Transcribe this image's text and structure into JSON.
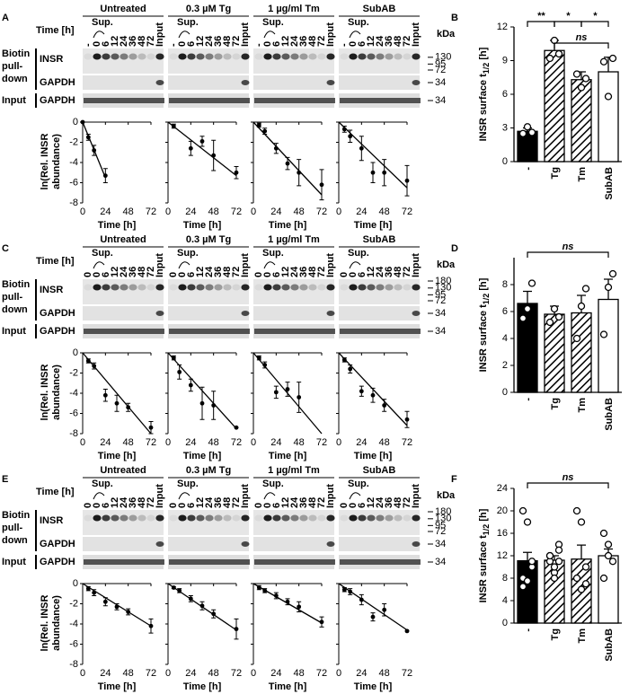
{
  "figure": {
    "rows": [
      {
        "letter": "A",
        "conditions": [
          "Untreated",
          "0.3 µM Tg",
          "1 µg/ml Tm",
          "SubAB"
        ],
        "time_label": "Time [h]",
        "sup_label": "Sup.",
        "lanes": [
          "-",
          "0",
          "6",
          "12",
          "24",
          "36",
          "48",
          "72",
          "Input"
        ],
        "kda_label": "kDa",
        "kda": [
          130,
          95,
          72,
          34,
          34
        ],
        "blot_labels": {
          "biotin": [
            "Biotin",
            "pull-",
            "down"
          ],
          "insr": "INSR",
          "gapdh": "GAPDH",
          "input": "Input",
          "input_gapdh": "GAPDH"
        },
        "decay": {
          "type": "line",
          "ylabel": [
            "ln(Rel. INSR",
            "abundance)"
          ],
          "xlabel": "Time [h]",
          "xlim": [
            0,
            72
          ],
          "ylim": [
            -8,
            0
          ],
          "xticks": [
            0,
            24,
            48,
            72
          ],
          "yticks": [
            0,
            -2,
            -4,
            -6,
            -8
          ],
          "plots": [
            {
              "x": [
                0,
                6,
                12,
                24
              ],
              "values": [
                0,
                -1.5,
                -2.8,
                -5.3
              ],
              "errors": [
                0,
                0.3,
                0.5,
                0.7
              ],
              "fit": {
                "x": [
                  0,
                  24
                ],
                "y": [
                  0,
                  -5.5
                ]
              }
            },
            {
              "x": [
                6,
                24,
                36,
                48,
                72
              ],
              "values": [
                -0.4,
                -2.6,
                -1.9,
                -3.3,
                -5
              ],
              "errors": [
                0.2,
                0.7,
                0.5,
                1.5,
                0.6
              ],
              "fit": {
                "x": [
                  0,
                  72
                ],
                "y": [
                  0,
                  -5.3
                ]
              }
            },
            {
              "x": [
                6,
                12,
                24,
                36,
                48,
                72
              ],
              "values": [
                -0.3,
                -0.9,
                -2.6,
                -4.1,
                -5,
                -6.2
              ],
              "errors": [
                0.2,
                0.3,
                0.5,
                0.6,
                1.3,
                1.5
              ],
              "fit": {
                "x": [
                  0,
                  72
                ],
                "y": [
                  0,
                  -7.2
                ]
              }
            },
            {
              "x": [
                6,
                12,
                24,
                36,
                48,
                72
              ],
              "values": [
                -0.7,
                -1.4,
                -2.6,
                -5,
                -5,
                -5.8
              ],
              "errors": [
                0.3,
                0.6,
                1.2,
                1,
                1.3,
                1.5
              ],
              "fit": {
                "x": [
                  0,
                  72
                ],
                "y": [
                  0,
                  -6.5
                ]
              }
            }
          ]
        },
        "summary": {
          "type": "bar",
          "letter": "B",
          "ylabel": "INSR surface t",
          "ylabel_sub": "1/2",
          "ylabel_unit": " [h]",
          "categories": [
            "-",
            "Tg",
            "Tm",
            "SubAB"
          ],
          "styles": [
            "solid",
            "hatched",
            "hatched",
            "open"
          ],
          "values": [
            2.7,
            9.9,
            7.3,
            8.0
          ],
          "errors": [
            0.3,
            0.9,
            0.7,
            1.3
          ],
          "points": [
            [
              2.5,
              3.1,
              2.6
            ],
            [
              9.2,
              10.8,
              9.6
            ],
            [
              7.8,
              6.6,
              7.4
            ],
            [
              8.9,
              5.8,
              9.2
            ]
          ],
          "ylim": [
            0,
            12
          ],
          "yticks": [
            0,
            3,
            6,
            9,
            12
          ],
          "significance": [
            {
              "label": "**",
              "between": [
                "-",
                "Tg"
              ]
            },
            {
              "label": "*",
              "between": [
                "Tg",
                "Tm"
              ]
            },
            {
              "label": "*",
              "between": [
                "Tm",
                "SubAB"
              ]
            },
            {
              "label": "ns",
              "between": [
                "Tg",
                "SubAB"
              ]
            }
          ]
        }
      },
      {
        "letter": "C",
        "conditions": [
          "Untreated",
          "0.3 µM Tg",
          "1 µg/ml Tm",
          "SubAB"
        ],
        "time_label": "Time [h]",
        "sup_label": "Sup.",
        "lanes": [
          "0",
          "0",
          "6",
          "12",
          "24",
          "36",
          "48",
          "72",
          "Input"
        ],
        "kda_label": "kDa",
        "kda": [
          180,
          130,
          95,
          72,
          34,
          34
        ],
        "blot_labels": {
          "biotin": [
            "Biotin",
            "pull-",
            "down"
          ],
          "insr": "INSR",
          "gapdh": "GAPDH",
          "input": "Input",
          "input_gapdh": "GAPDH"
        },
        "decay": {
          "type": "line",
          "ylabel": [
            "ln(Rel. INSR",
            "abundance)"
          ],
          "xlabel": "Time [h]",
          "xlim": [
            0,
            72
          ],
          "ylim": [
            -8,
            0
          ],
          "xticks": [
            0,
            24,
            48,
            72
          ],
          "yticks": [
            0,
            -2,
            -4,
            -6,
            -8
          ],
          "plots": [
            {
              "x": [
                6,
                12,
                24,
                36,
                48,
                72
              ],
              "values": [
                -0.8,
                -1.3,
                -4.2,
                -5,
                -5.4,
                -7.4
              ],
              "errors": [
                0.2,
                0.3,
                0.6,
                0.8,
                0.4,
                0.6
              ],
              "fit": {
                "x": [
                  0,
                  72
                ],
                "y": [
                  0,
                  -8
                ]
              }
            },
            {
              "x": [
                6,
                12,
                24,
                36,
                48,
                72
              ],
              "values": [
                -0.5,
                -1.9,
                -3.2,
                -5,
                -5.2,
                -7.4
              ],
              "errors": [
                0.2,
                0.7,
                0.6,
                1.6,
                1.4,
                0
              ],
              "fit": {
                "x": [
                  0,
                  72
                ],
                "y": [
                  0,
                  -7.5
                ]
              }
            },
            {
              "x": [
                6,
                12,
                24,
                36,
                48
              ],
              "values": [
                -0.5,
                -1.2,
                -3.9,
                -3.6,
                -4.4
              ],
              "errors": [
                0.2,
                0.3,
                0.6,
                0.7,
                1.5
              ],
              "fit": {
                "x": [
                  0,
                  72
                ],
                "y": [
                  0,
                  -8
                ]
              }
            },
            {
              "x": [
                6,
                12,
                24,
                36,
                48,
                72
              ],
              "values": [
                -0.7,
                -1.6,
                -3.8,
                -4.2,
                -5.2,
                -6.6
              ],
              "errors": [
                0.2,
                0.4,
                0.5,
                0.7,
                0.6,
                0.8
              ],
              "fit": {
                "x": [
                  0,
                  72
                ],
                "y": [
                  0,
                  -7.2
                ]
              }
            }
          ]
        },
        "summary": {
          "type": "bar",
          "letter": "D",
          "ylabel": "INSR surface t",
          "ylabel_sub": "1/2",
          "ylabel_unit": " [h]",
          "categories": [
            "-",
            "Tg",
            "Tm",
            "SubAB"
          ],
          "styles": [
            "solid",
            "hatched",
            "hatched",
            "open"
          ],
          "values": [
            6.6,
            5.8,
            5.9,
            6.9
          ],
          "errors": [
            0.9,
            0.6,
            1.3,
            1.5
          ],
          "points": [
            [
              5.5,
              6.2,
              8.1
            ],
            [
              5.2,
              6.2,
              5.6
            ],
            [
              4.0,
              6.4,
              7.7
            ],
            [
              4.3,
              7.8,
              8.8
            ]
          ],
          "ylim": [
            0,
            10
          ],
          "yticks": [
            0,
            2,
            4,
            6,
            8
          ],
          "significance": [
            {
              "label": "ns",
              "between": [
                "-",
                "SubAB"
              ]
            }
          ]
        }
      },
      {
        "letter": "E",
        "conditions": [
          "Untreated",
          "0.3 µM Tg",
          "1 µg/ml Tm",
          "SubAB"
        ],
        "time_label": "Time [h]",
        "sup_label": "Sup.",
        "lanes": [
          "0",
          "0",
          "6",
          "12",
          "24",
          "36",
          "48",
          "72",
          "Input"
        ],
        "kda_label": "kDa",
        "kda": [
          180,
          130,
          95,
          72,
          34,
          34
        ],
        "blot_labels": {
          "biotin": [
            "Biotin",
            "pull-",
            "down"
          ],
          "insr": "INSR",
          "gapdh": "GAPDH",
          "input": "Input",
          "input_gapdh": "GAPDH"
        },
        "decay": {
          "type": "line",
          "ylabel": [
            "ln(Rel. INSR",
            "abundance)"
          ],
          "xlabel": "Time [h]",
          "xlim": [
            0,
            72
          ],
          "ylim": [
            -8,
            0
          ],
          "xticks": [
            0,
            24,
            48,
            72
          ],
          "yticks": [
            0,
            -2,
            -4,
            -6,
            -8
          ],
          "plots": [
            {
              "x": [
                6,
                12,
                24,
                36,
                48,
                72
              ],
              "values": [
                -0.5,
                -0.9,
                -1.8,
                -2.3,
                -2.8,
                -4.2
              ],
              "errors": [
                0.2,
                0.3,
                0.4,
                0.3,
                0.3,
                0.7
              ],
              "fit": {
                "x": [
                  0,
                  72
                ],
                "y": [
                  0,
                  -4.2
                ]
              }
            },
            {
              "x": [
                6,
                12,
                24,
                36,
                48,
                72
              ],
              "values": [
                -0.4,
                -0.7,
                -1.5,
                -2.2,
                -3,
                -4.5
              ],
              "errors": [
                0.1,
                0.2,
                0.3,
                0.4,
                0.4,
                1
              ],
              "fit": {
                "x": [
                  0,
                  72
                ],
                "y": [
                  0,
                  -4.6
                ]
              }
            },
            {
              "x": [
                6,
                12,
                24,
                36,
                48,
                72
              ],
              "values": [
                -0.4,
                -0.7,
                -1.2,
                -1.8,
                -2.3,
                -3.8
              ],
              "errors": [
                0.2,
                0.2,
                0.3,
                0.3,
                0.5,
                0.5
              ],
              "fit": {
                "x": [
                  0,
                  72
                ],
                "y": [
                  0,
                  -3.9
                ]
              }
            },
            {
              "x": [
                6,
                12,
                24,
                36,
                48,
                72
              ],
              "values": [
                -0.6,
                -0.8,
                -1.6,
                -3.3,
                -2.6,
                -4.7
              ],
              "errors": [
                0.2,
                0.3,
                0.5,
                0.4,
                0.6,
                0
              ],
              "fit": {
                "x": [
                  0,
                  72
                ],
                "y": [
                  0,
                  -4.6
                ]
              }
            }
          ]
        },
        "summary": {
          "type": "bar",
          "letter": "F",
          "ylabel": "INSR surface t",
          "ylabel_sub": "1/2",
          "ylabel_unit": " [h]",
          "categories": [
            "-",
            "Tg",
            "Tm",
            "SubAB"
          ],
          "styles": [
            "solid",
            "hatched",
            "hatched",
            "open"
          ],
          "values": [
            11.1,
            11.2,
            11.4,
            12.0
          ],
          "errors": [
            1.5,
            0.8,
            2.5,
            1.2
          ],
          "points": [
            [
              20,
              18,
              10,
              8,
              7.5,
              11,
              6.5
            ],
            [
              12,
              9,
              14,
              11,
              10,
              13,
              12,
              8,
              11
            ],
            [
              20,
              18,
              10,
              8,
              6,
              7
            ],
            [
              16,
              14,
              11,
              8,
              12
            ]
          ],
          "ylim": [
            0,
            24
          ],
          "yticks": [
            0,
            4,
            8,
            12,
            16,
            20,
            24
          ],
          "significance": [
            {
              "label": "ns",
              "between": [
                "-",
                "SubAB"
              ]
            }
          ]
        }
      }
    ]
  }
}
